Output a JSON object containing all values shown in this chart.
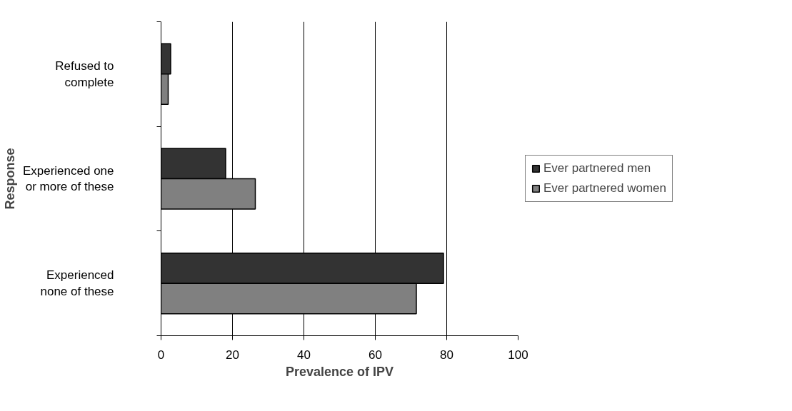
{
  "chart_data": {
    "type": "bar",
    "orientation": "horizontal",
    "xlabel": "Prevalence of IPV",
    "ylabel": "Response",
    "categories": [
      "Refused to\ncomplete",
      "Experienced one\nor more of these",
      "Experienced\nnone of these"
    ],
    "series": [
      {
        "name": "Ever partnered men",
        "color": "#333333",
        "values": [
          2.7,
          18.1,
          79.1
        ]
      },
      {
        "name": "Ever partnered women",
        "color": "#808080",
        "values": [
          2.0,
          26.4,
          71.5
        ]
      }
    ],
    "xlim": [
      0,
      100
    ],
    "xticks": [
      0,
      20,
      40,
      60,
      80,
      100
    ],
    "grid": "x",
    "legend": "right"
  }
}
